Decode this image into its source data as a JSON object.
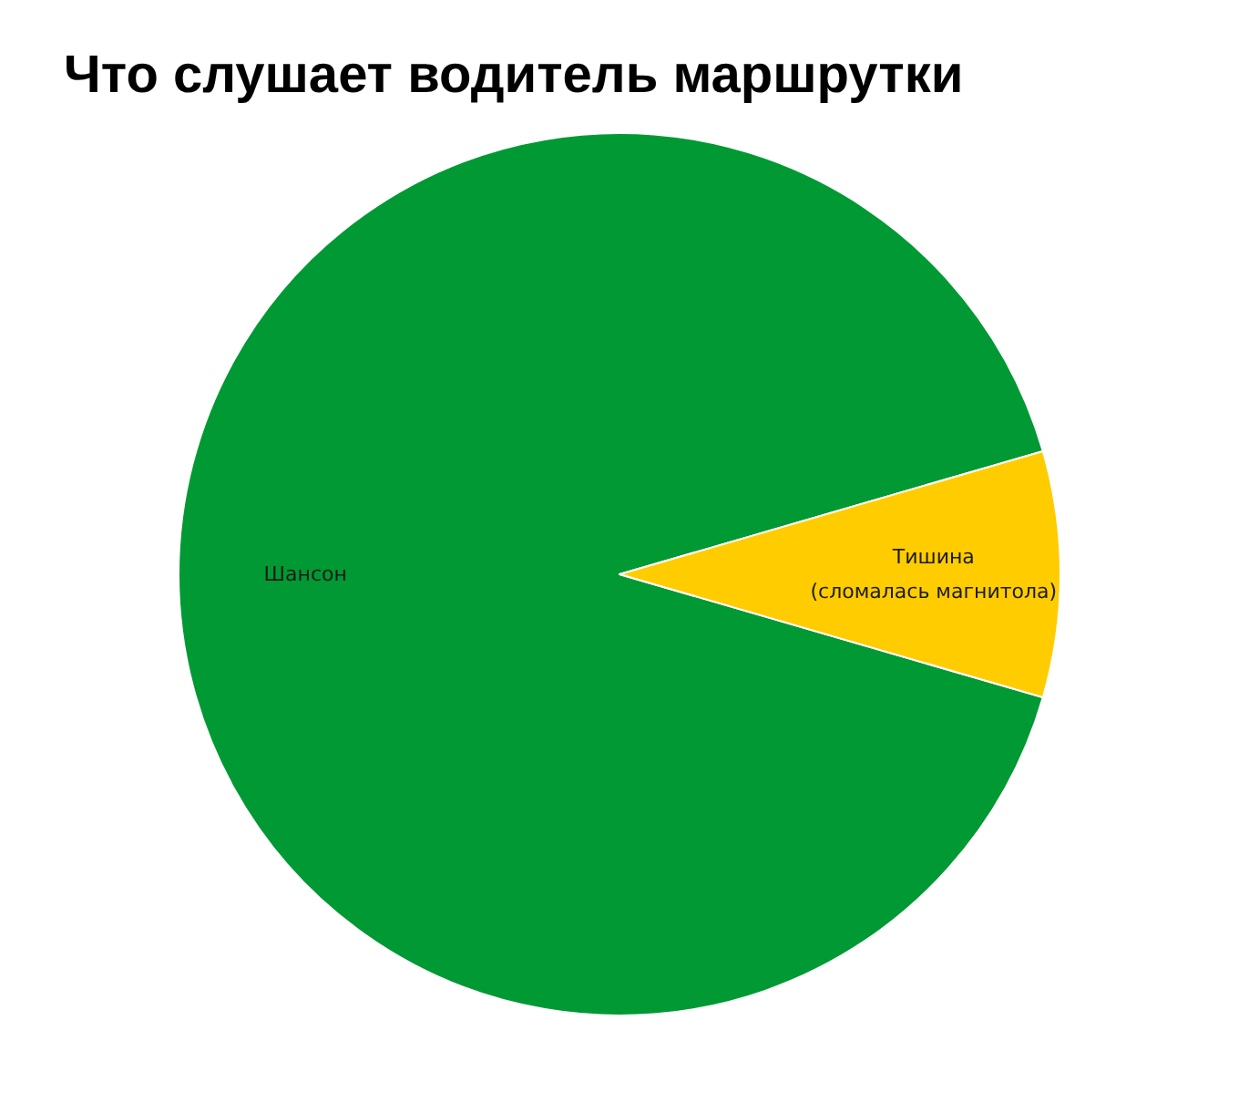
{
  "chart_data": {
    "type": "pie",
    "title": "Что слушает водитель маршрутки",
    "categories": [
      "Шансон",
      "Тишина\n(сломалась магнитола)"
    ],
    "values": [
      91,
      9
    ],
    "colors": [
      "#009933",
      "#ffcc00"
    ]
  }
}
